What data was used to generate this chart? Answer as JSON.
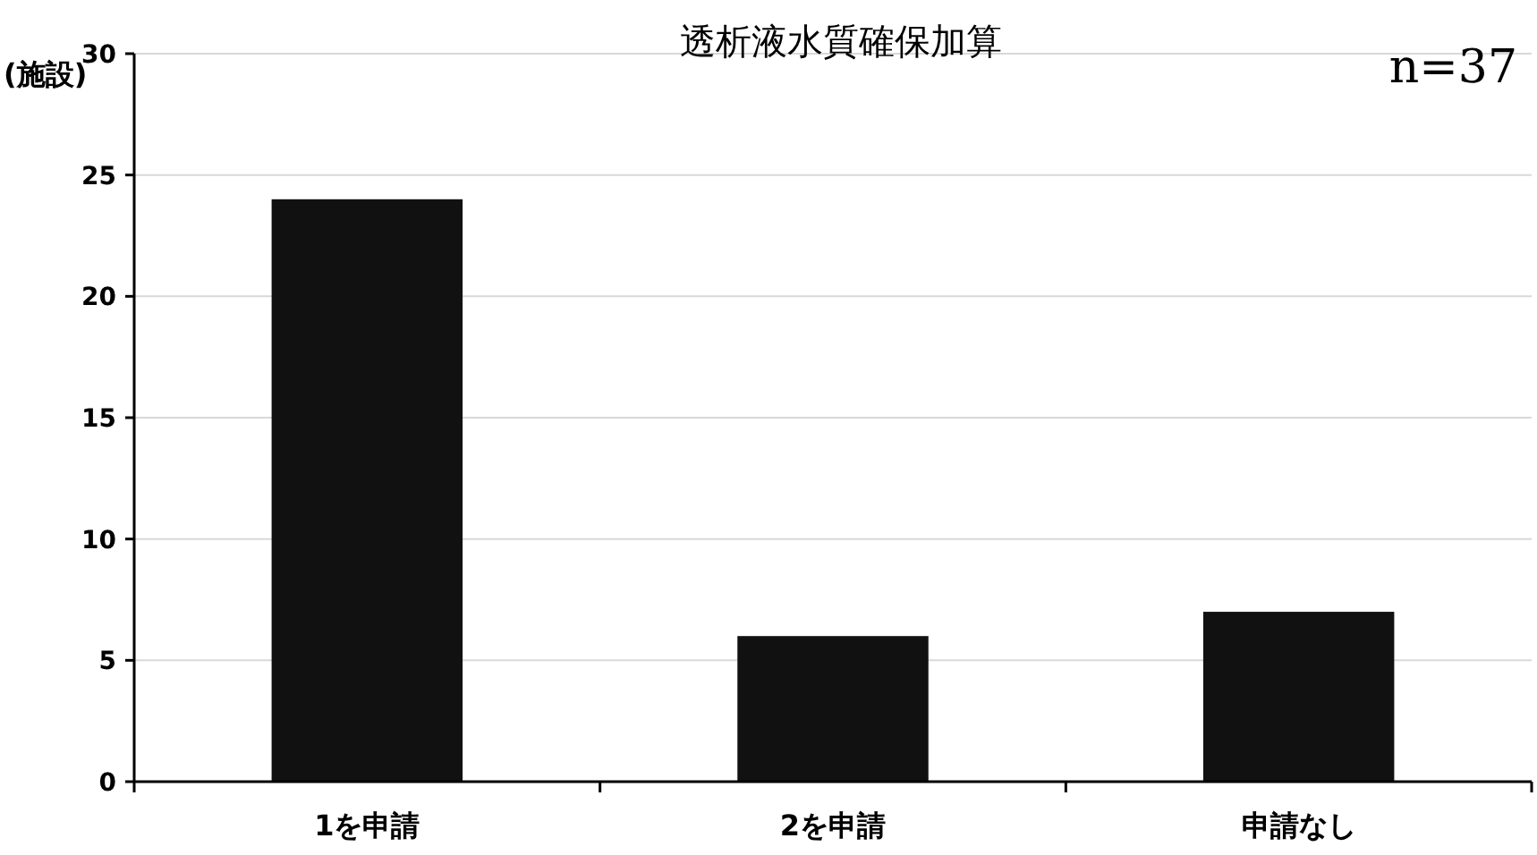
{
  "chart_data": {
    "type": "bar",
    "title": "透析液水質確保加算",
    "ylabel": "(施設)",
    "annotations": [
      "n=37"
    ],
    "categories": [
      "1を申請",
      "2を申請",
      "申請なし"
    ],
    "values": [
      24,
      6,
      7
    ],
    "color": "#111111",
    "ylim": [
      0,
      30
    ],
    "yticks": [
      0,
      5,
      10,
      15,
      20,
      25,
      30
    ],
    "grid": "y"
  }
}
